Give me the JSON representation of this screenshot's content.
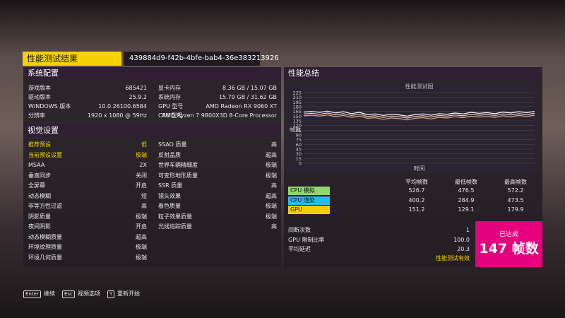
{
  "header": {
    "title": "性能测试结果",
    "id": "439884d9-f42b-4bfe-bab4-36e383213926"
  },
  "system": {
    "title": "系统配置",
    "left": [
      [
        "游戏版本",
        "685421"
      ],
      [
        "驱动版本",
        "25.9.2"
      ],
      [
        "WINDOWS 版本",
        "10.0.26100.6584"
      ],
      [
        "分辨率",
        "1920 x 1080 @ 59Hz"
      ]
    ],
    "right": [
      [
        "显卡内存",
        "8.36 GB / 15.07 GB"
      ],
      [
        "系统内存",
        "15.79 GB / 31.62 GB"
      ],
      [
        "GPU 型号",
        "AMD Radeon RX 9060 XT"
      ],
      [
        "CPU 型号",
        "AMD Ryzen 7 9800X3D 8-Core Processor"
      ]
    ]
  },
  "visual": {
    "title": "视觉设置",
    "left": [
      [
        "推荐预设",
        "低"
      ],
      [
        "当前预设设置",
        "极端"
      ],
      [
        "MSAA",
        "2X"
      ],
      [
        "垂直同步",
        "关闭"
      ],
      [
        "全屏幕",
        "开启"
      ],
      [
        "动态模糊",
        "短"
      ],
      [
        "非等方性过滤",
        "高"
      ],
      [
        "阴影质量",
        "极端"
      ],
      [
        "夜间阴影",
        "开启"
      ],
      [
        "动态模糊质量",
        "超高"
      ],
      [
        "环境纹理质量",
        "极端"
      ],
      [
        "环境几何质量",
        "极端"
      ]
    ],
    "right": [
      [
        "SSAO 质量",
        "高"
      ],
      [
        "反射品质",
        "超高"
      ],
      [
        "世界车辆精细度",
        "极端"
      ],
      [
        "可变形地形质量",
        "极端"
      ],
      [
        "SSR 质量",
        "高"
      ],
      [
        "镜头效果",
        "超高"
      ],
      [
        "着色质量",
        "极端"
      ],
      [
        "粒子效果质量",
        "极端"
      ],
      [
        "光线追踪质量",
        "高"
      ]
    ]
  },
  "summary": {
    "title": "性能总结",
    "chart": {
      "type": "line",
      "title": "性能测试图",
      "ylabel": "帧数",
      "xlabel": "时间",
      "ylim": [
        0,
        225
      ],
      "yticks": [
        0,
        15,
        30,
        45,
        60,
        75,
        90,
        105,
        120,
        135,
        150,
        165,
        180,
        195,
        210,
        225
      ],
      "series": [
        {
          "color": "#ffffff",
          "values": [
            163,
            165,
            162,
            166,
            160,
            164,
            158,
            162,
            155,
            157,
            152,
            156,
            154,
            150,
            155,
            157,
            153,
            158,
            156,
            160,
            157,
            162,
            159,
            161,
            158,
            163,
            160,
            164,
            161,
            165
          ]
        },
        {
          "color": "#f2c9c9",
          "values": [
            157,
            159,
            156,
            160,
            154,
            158,
            152,
            156,
            149,
            151,
            146,
            150,
            148,
            144,
            149,
            151,
            147,
            152,
            150,
            154,
            151,
            156,
            153,
            155,
            152,
            157,
            154,
            158,
            155,
            159
          ]
        },
        {
          "color": "#d9a878",
          "values": [
            151,
            153,
            150,
            154,
            148,
            152,
            146,
            150,
            143,
            145,
            140,
            144,
            142,
            138,
            143,
            145,
            141,
            146,
            144,
            148,
            145,
            150,
            147,
            149,
            146,
            151,
            148,
            152,
            149,
            153
          ]
        }
      ]
    },
    "table": {
      "headers": [
        "平均帧数",
        "最低帧数",
        "最高帧数"
      ],
      "rows": [
        {
          "label": "CPU 模拟",
          "color": "#8fd86a",
          "values": [
            "526.7",
            "476.5",
            "572.2"
          ]
        },
        {
          "label": "CPU 渲染",
          "color": "#2cb8ec",
          "values": [
            "400.2",
            "284.9",
            "473.5"
          ]
        },
        {
          "label": "GPU",
          "color": "#f2d000",
          "values": [
            "151.2",
            "129.1",
            "179.9"
          ]
        }
      ]
    },
    "stats": [
      [
        "间断次数",
        "1"
      ],
      [
        "GPU 限制比率",
        "100.0"
      ],
      [
        "平均延迟",
        "20.3"
      ]
    ],
    "valid": "性能测试有效",
    "badge": {
      "top": "已达成",
      "value": "147 帧数"
    }
  },
  "footer": [
    {
      "key": "Enter",
      "label": "继续"
    },
    {
      "key": "Esc",
      "label": "视频选项"
    },
    {
      "key": "Y",
      "label": "重新开始"
    }
  ]
}
